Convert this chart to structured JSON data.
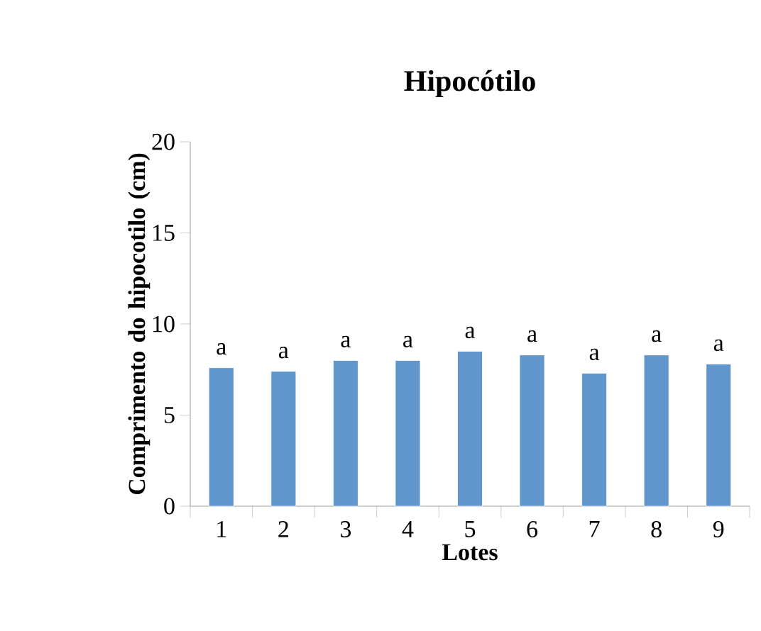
{
  "chart_data": {
    "type": "bar",
    "title": "Hipocótilo",
    "xlabel": "Lotes",
    "ylabel": "Comprimento do hipocotilo (cm)",
    "categories": [
      "1",
      "2",
      "3",
      "4",
      "5",
      "6",
      "7",
      "8",
      "9"
    ],
    "values": [
      7.6,
      7.4,
      8.0,
      8.0,
      8.5,
      8.3,
      7.3,
      8.3,
      7.8
    ],
    "color": "#6096cb",
    "ylim": [
      0,
      20
    ],
    "yticks": [
      0,
      5,
      10,
      15,
      20
    ],
    "grid": false,
    "annotations": [
      {
        "text": "a",
        "x": "1",
        "y": 7.6
      },
      {
        "text": "a",
        "x": "2",
        "y": 7.4
      },
      {
        "text": "a",
        "x": "3",
        "y": 8.0
      },
      {
        "text": "a",
        "x": "4",
        "y": 8.0
      },
      {
        "text": "a",
        "x": "5",
        "y": 8.5
      },
      {
        "text": "a",
        "x": "6",
        "y": 8.3
      },
      {
        "text": "a",
        "x": "7",
        "y": 7.3
      },
      {
        "text": "a",
        "x": "8",
        "y": 8.3
      },
      {
        "text": "a",
        "x": "9",
        "y": 7.8
      }
    ]
  }
}
